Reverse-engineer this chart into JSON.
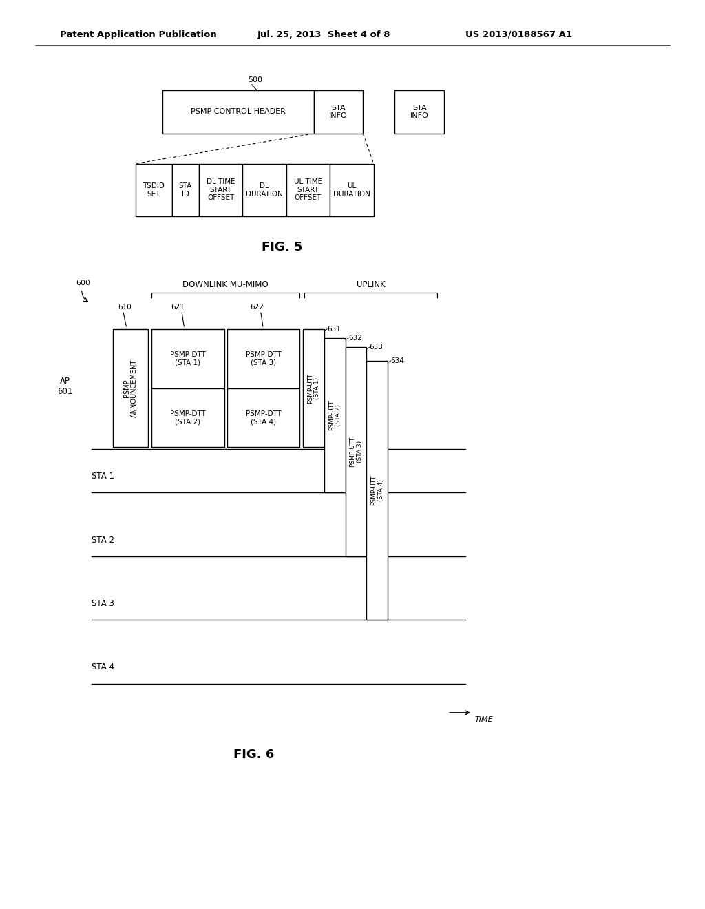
{
  "bg_color": "#ffffff",
  "header_text": "Patent Application Publication",
  "header_date": "Jul. 25, 2013  Sheet 4 of 8",
  "header_patent": "US 2013/0188567 A1",
  "fig5_label": "FIG. 5",
  "fig6_label": "FIG. 6",
  "fig5_ref": "500",
  "fig6_ref": "600",
  "fig6_ap_label": "AP\n601",
  "fig6_sta_labels": [
    "STA 1",
    "STA 2",
    "STA 3",
    "STA 4"
  ],
  "fig6_downlink_label": "DOWNLINK MU-MIMO",
  "fig6_uplink_label": "UPLINK",
  "fig6_ref610": "610",
  "fig6_ref621": "621",
  "fig6_ref622": "622",
  "fig6_ref631": "631",
  "fig6_ref632": "632",
  "fig6_ref633": "633",
  "fig6_ref634": "634",
  "time_label": "TIME"
}
